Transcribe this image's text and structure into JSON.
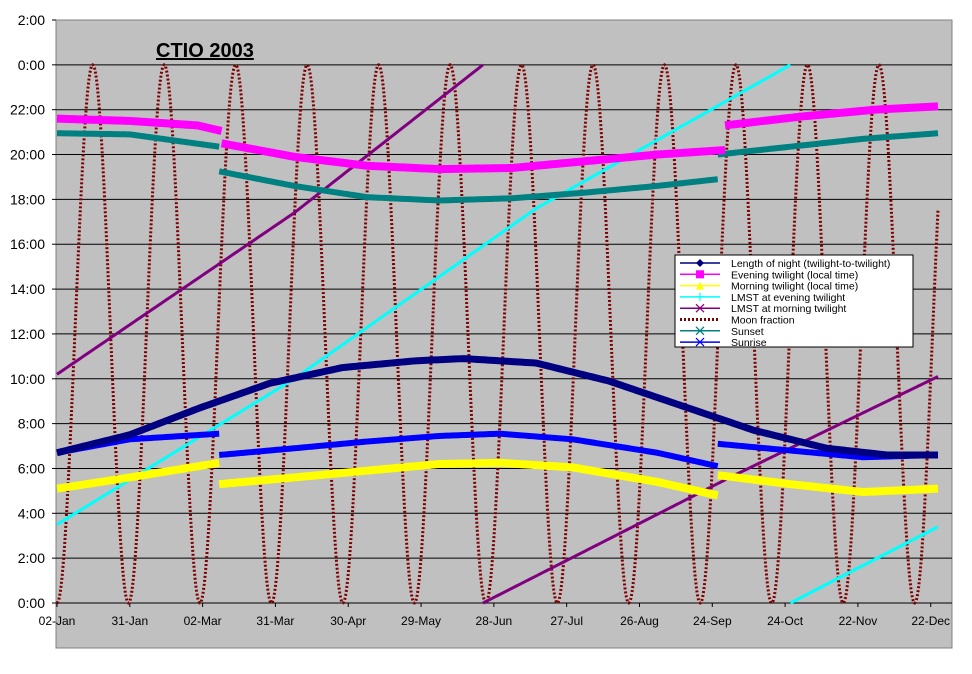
{
  "chart_data": {
    "type": "line",
    "title": "CTIO 2003",
    "xlabel": "",
    "ylabel": "",
    "x_tick_labels": [
      "02-Jan",
      "31-Jan",
      "02-Mar",
      "31-Mar",
      "30-Apr",
      "29-May",
      "28-Jun",
      "27-Jul",
      "26-Aug",
      "24-Sep",
      "24-Oct",
      "22-Nov",
      "22-Dec"
    ],
    "y_tick_labels": [
      "0:00",
      "2:00",
      "4:00",
      "6:00",
      "8:00",
      "10:00",
      "12:00",
      "14:00",
      "16:00",
      "18:00",
      "20:00",
      "22:00",
      "0:00",
      "2:00"
    ],
    "x_unit": "day of 2003",
    "xlim": [
      2,
      366
    ],
    "ylim_hours": [
      0,
      26
    ],
    "grid": "horizontal",
    "plot_background": "#c0c0c0",
    "legend_position": "right",
    "series": [
      {
        "name": "Length of night (twilight-to-twilight)",
        "color": "#000080",
        "marker": "diamond",
        "style": "solid",
        "points": [
          [
            2,
            6.7
          ],
          [
            32,
            7.5
          ],
          [
            61,
            8.7
          ],
          [
            90,
            9.8
          ],
          [
            120,
            10.5
          ],
          [
            150,
            10.8
          ],
          [
            170,
            10.9
          ],
          [
            200,
            10.7
          ],
          [
            230,
            9.9
          ],
          [
            260,
            8.8
          ],
          [
            290,
            7.7
          ],
          [
            320,
            6.9
          ],
          [
            345,
            6.6
          ],
          [
            366,
            6.6
          ]
        ]
      },
      {
        "name": "Evening twilight (local time)",
        "color": "#ff00ff",
        "marker": "square",
        "style": "solid",
        "points": [
          [
            2,
            21.6
          ],
          [
            32,
            21.5
          ],
          [
            60,
            21.3
          ],
          [
            70,
            21.05
          ],
          [
            70.01,
            20.5
          ],
          [
            100,
            19.9
          ],
          [
            130,
            19.5
          ],
          [
            160,
            19.35
          ],
          [
            190,
            19.4
          ],
          [
            220,
            19.7
          ],
          [
            250,
            20.0
          ],
          [
            278,
            20.2
          ],
          [
            278.01,
            21.3
          ],
          [
            310,
            21.7
          ],
          [
            340,
            22.0
          ],
          [
            366,
            22.15
          ]
        ]
      },
      {
        "name": "Morning twilight (local time)",
        "color": "#ffff00",
        "marker": "triangle",
        "style": "solid",
        "points": [
          [
            2,
            5.1
          ],
          [
            32,
            5.6
          ],
          [
            69,
            6.25
          ],
          [
            69.01,
            5.3
          ],
          [
            100,
            5.6
          ],
          [
            130,
            5.9
          ],
          [
            160,
            6.2
          ],
          [
            185,
            6.25
          ],
          [
            215,
            6.05
          ],
          [
            250,
            5.4
          ],
          [
            275,
            4.8
          ],
          [
            275.01,
            5.7
          ],
          [
            305,
            5.3
          ],
          [
            335,
            4.95
          ],
          [
            366,
            5.1
          ]
        ]
      },
      {
        "name": "LMST at evening twilight",
        "color": "#00ffff",
        "marker": "plus",
        "style": "solid",
        "points": [
          [
            2,
            3.5
          ],
          [
            100,
            10.0
          ],
          [
            200,
            17.6
          ],
          [
            305,
            24.0
          ],
          [
            305.01,
            0.0
          ],
          [
            366,
            3.4
          ]
        ]
      },
      {
        "name": "LMST at morning twilight",
        "color": "#800080",
        "marker": "cross",
        "style": "solid",
        "points": [
          [
            2,
            10.2
          ],
          [
            100,
            17.4
          ],
          [
            178,
            24.0
          ],
          [
            178.01,
            0.0
          ],
          [
            280,
            5.6
          ],
          [
            366,
            10.1
          ]
        ]
      },
      {
        "name": "Moon fraction",
        "color": "#800000",
        "marker": "none",
        "style": "dotted",
        "description_type": "sinusoid",
        "min": 0.0,
        "max": 24.0,
        "period_days": 29.53,
        "new_moon_day": 2,
        "end_value_hours": 15.6
      },
      {
        "name": "Sunset",
        "color": "#008080",
        "marker": "x",
        "style": "solid",
        "points": [
          [
            2,
            20.95
          ],
          [
            32,
            20.9
          ],
          [
            69,
            20.35
          ],
          [
            69.01,
            19.25
          ],
          [
            100,
            18.6
          ],
          [
            130,
            18.1
          ],
          [
            160,
            17.95
          ],
          [
            190,
            18.05
          ],
          [
            220,
            18.3
          ],
          [
            250,
            18.6
          ],
          [
            275,
            18.9
          ],
          [
            275.01,
            20.0
          ],
          [
            305,
            20.35
          ],
          [
            335,
            20.7
          ],
          [
            366,
            20.95
          ]
        ]
      },
      {
        "name": "Sunrise",
        "color": "#0000ff",
        "marker": "x",
        "style": "solid",
        "points": [
          [
            2,
            6.7
          ],
          [
            32,
            7.3
          ],
          [
            69,
            7.55
          ],
          [
            69.01,
            6.6
          ],
          [
            100,
            6.9
          ],
          [
            130,
            7.2
          ],
          [
            160,
            7.45
          ],
          [
            185,
            7.55
          ],
          [
            215,
            7.3
          ],
          [
            250,
            6.7
          ],
          [
            275,
            6.1
          ],
          [
            275.01,
            7.1
          ],
          [
            305,
            6.8
          ],
          [
            335,
            6.5
          ],
          [
            366,
            6.6
          ]
        ]
      }
    ]
  }
}
